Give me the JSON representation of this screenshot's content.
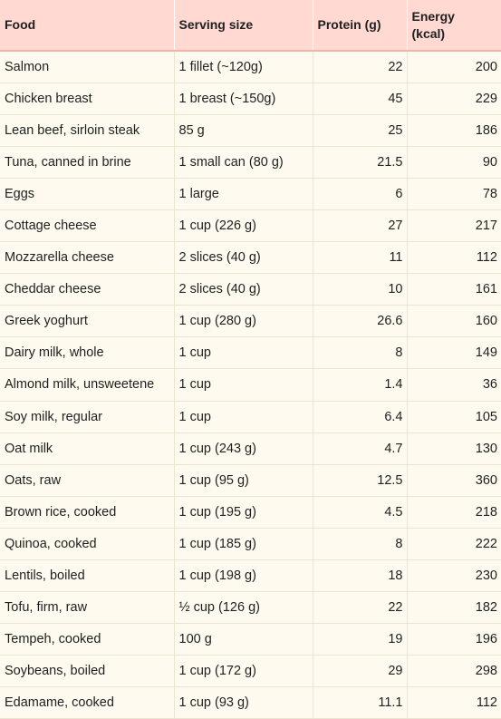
{
  "headers": {
    "food": "Food",
    "serving": "Serving size",
    "protein": "Protein (g)",
    "energy_line1": "Energy",
    "energy_line2": "(kcal)"
  },
  "rows": [
    {
      "food": "Salmon",
      "serving": "1 fillet (~120g)",
      "protein": "22",
      "energy": "200"
    },
    {
      "food": "Chicken breast",
      "serving": "1 breast (~150g)",
      "protein": "45",
      "energy": "229"
    },
    {
      "food": "Lean beef, sirloin steak",
      "serving": "85 g",
      "protein": "25",
      "energy": "186"
    },
    {
      "food": "Tuna, canned in brine",
      "serving": "1 small can (80 g)",
      "protein": "21.5",
      "energy": "90"
    },
    {
      "food": "Eggs",
      "serving": "1 large",
      "protein": "6",
      "energy": "78"
    },
    {
      "food": "Cottage cheese",
      "serving": "1 cup (226 g)",
      "protein": "27",
      "energy": "217"
    },
    {
      "food": "Mozzarella cheese",
      "serving": "2 slices (40 g)",
      "protein": "11",
      "energy": "112"
    },
    {
      "food": "Cheddar cheese",
      "serving": "2 slices (40 g)",
      "protein": "10",
      "energy": "161"
    },
    {
      "food": "Greek yoghurt",
      "serving": "1 cup (280 g)",
      "protein": "26.6",
      "energy": "160"
    },
    {
      "food": "Dairy milk, whole",
      "serving": "1 cup",
      "protein": "8",
      "energy": "149"
    },
    {
      "food": "Almond milk, unsweetene",
      "serving": "1 cup",
      "protein": "1.4",
      "energy": "36"
    },
    {
      "food": "Soy milk, regular",
      "serving": "1 cup",
      "protein": "6.4",
      "energy": "105"
    },
    {
      "food": "Oat milk",
      "serving": "1 cup (243 g)",
      "protein": "4.7",
      "energy": "130"
    },
    {
      "food": "Oats, raw",
      "serving": "1 cup (95 g)",
      "protein": "12.5",
      "energy": "360"
    },
    {
      "food": "Brown rice, cooked",
      "serving": "1 cup (195 g)",
      "protein": "4.5",
      "energy": "218"
    },
    {
      "food": "Quinoa, cooked",
      "serving": "1 cup (185 g)",
      "protein": "8",
      "energy": "222"
    },
    {
      "food": "Lentils, boiled",
      "serving": "1 cup (198 g)",
      "protein": "18",
      "energy": "230"
    },
    {
      "food": "Tofu, firm, raw",
      "serving": "½ cup (126 g)",
      "protein": "22",
      "energy": "182"
    },
    {
      "food": "Tempeh, cooked",
      "serving": "100 g",
      "protein": "19",
      "energy": "196"
    },
    {
      "food": "Soybeans, boiled",
      "serving": "1 cup (172 g)",
      "protein": "29",
      "energy": "298"
    },
    {
      "food": "Edamame, cooked",
      "serving": "1 cup (93 g)",
      "protein": "11.1",
      "energy": "112"
    }
  ]
}
